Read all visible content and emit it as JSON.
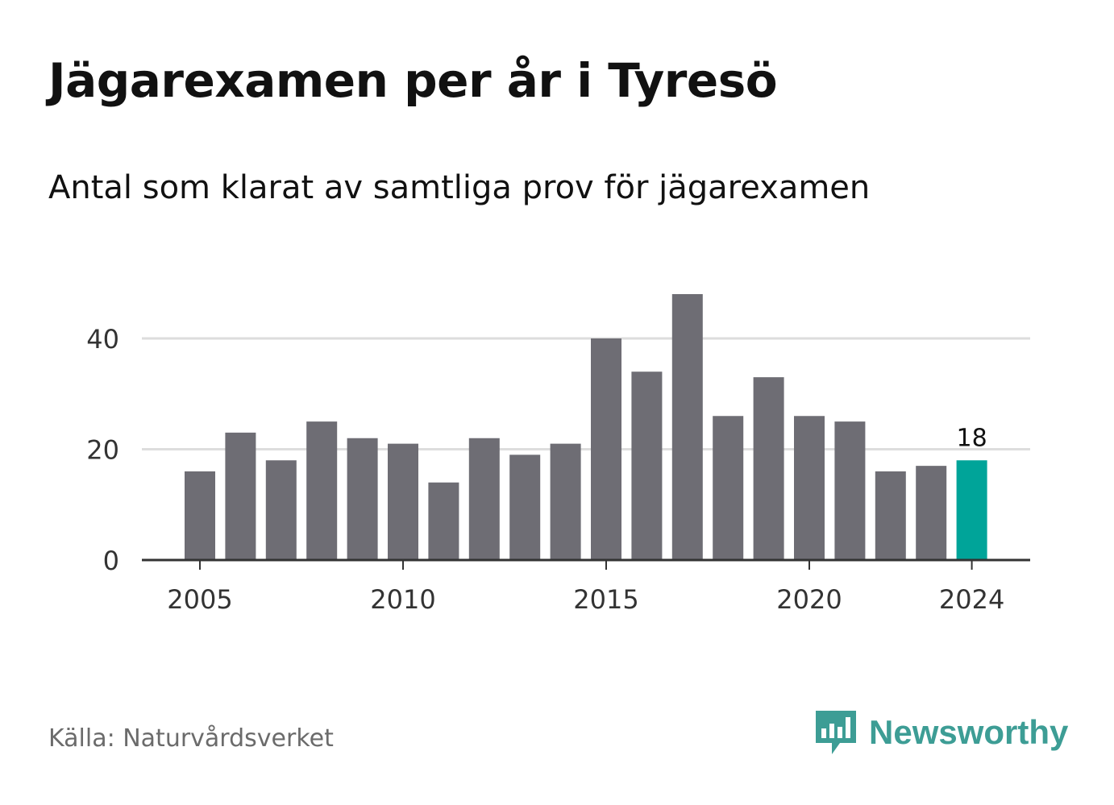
{
  "title": "Jägarexamen per år i Tyresö",
  "subtitle": "Antal som klarat av samtliga prov för jägarexamen",
  "source": "Källa: Naturvårdsverket",
  "brand": {
    "name": "Newsworthy",
    "logo_icon": "newsworthy-bar-chart-bubble-icon",
    "color": "#3d9d95"
  },
  "colors": {
    "bar": "#6e6d74",
    "highlight": "#00a499",
    "grid": "#dddddd",
    "axis": "#333333",
    "text": "#333333"
  },
  "chart_data": {
    "type": "bar",
    "x": [
      2005,
      2006,
      2007,
      2008,
      2009,
      2010,
      2011,
      2012,
      2013,
      2014,
      2015,
      2016,
      2017,
      2018,
      2019,
      2020,
      2021,
      2022,
      2023,
      2024
    ],
    "values": [
      16,
      23,
      18,
      25,
      22,
      21,
      14,
      22,
      19,
      21,
      40,
      34,
      48,
      26,
      33,
      26,
      25,
      16,
      17,
      18
    ],
    "xticks": [
      "2005",
      "2010",
      "2015",
      "2020",
      "2024"
    ],
    "yticks": [
      0,
      20,
      40
    ],
    "ylim": [
      0,
      50
    ],
    "highlight": "2024",
    "data_labels": [
      {
        "x": 2024,
        "label": "18"
      }
    ],
    "grid": true,
    "legend": "none",
    "xlabel": "",
    "ylabel": ""
  }
}
